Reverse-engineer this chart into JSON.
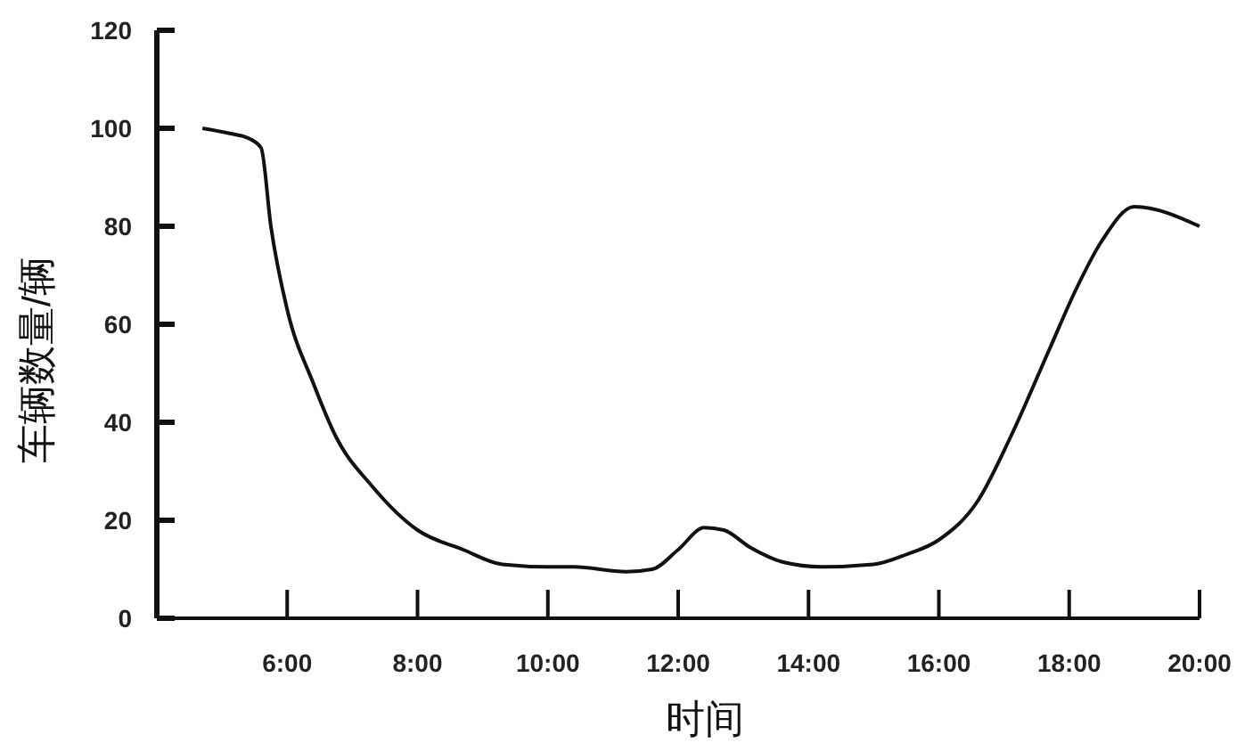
{
  "chart_data": {
    "type": "line",
    "xlabel": "时间",
    "ylabel": "车辆数量/辆",
    "xlim": [
      4,
      20
    ],
    "ylim": [
      0,
      120
    ],
    "xticks": [
      {
        "value": 6,
        "label": "6:00"
      },
      {
        "value": 8,
        "label": "8:00"
      },
      {
        "value": 10,
        "label": "10:00"
      },
      {
        "value": 12,
        "label": "12:00"
      },
      {
        "value": 14,
        "label": "14:00"
      },
      {
        "value": 16,
        "label": "16:00"
      },
      {
        "value": 18,
        "label": "18:00"
      },
      {
        "value": 20,
        "label": "20:00"
      }
    ],
    "yticks": [
      0,
      20,
      40,
      60,
      80,
      100,
      120
    ],
    "grid": false,
    "marker": "none",
    "line_style": "solid",
    "series": [
      {
        "color": "#111111",
        "x": [
          4.7,
          5.1,
          5.4,
          5.6,
          5.75,
          6,
          6.4,
          6.75,
          7.3,
          8,
          8.7,
          9.3,
          10,
          10.4,
          11.2,
          11.6,
          12,
          12.4,
          12.7,
          13.1,
          13.6,
          14.2,
          15,
          15.5,
          16,
          16.6,
          17.1,
          17.7,
          18.1,
          18.5,
          19,
          20
        ],
        "values": [
          100,
          99,
          98,
          96,
          80,
          63,
          48,
          37,
          27,
          18,
          14,
          11,
          10.5,
          10.5,
          9.5,
          10,
          14,
          18.5,
          18,
          14.5,
          11.5,
          10.5,
          11,
          13,
          16,
          24,
          37,
          55,
          67,
          77,
          84,
          80
        ]
      }
    ]
  }
}
